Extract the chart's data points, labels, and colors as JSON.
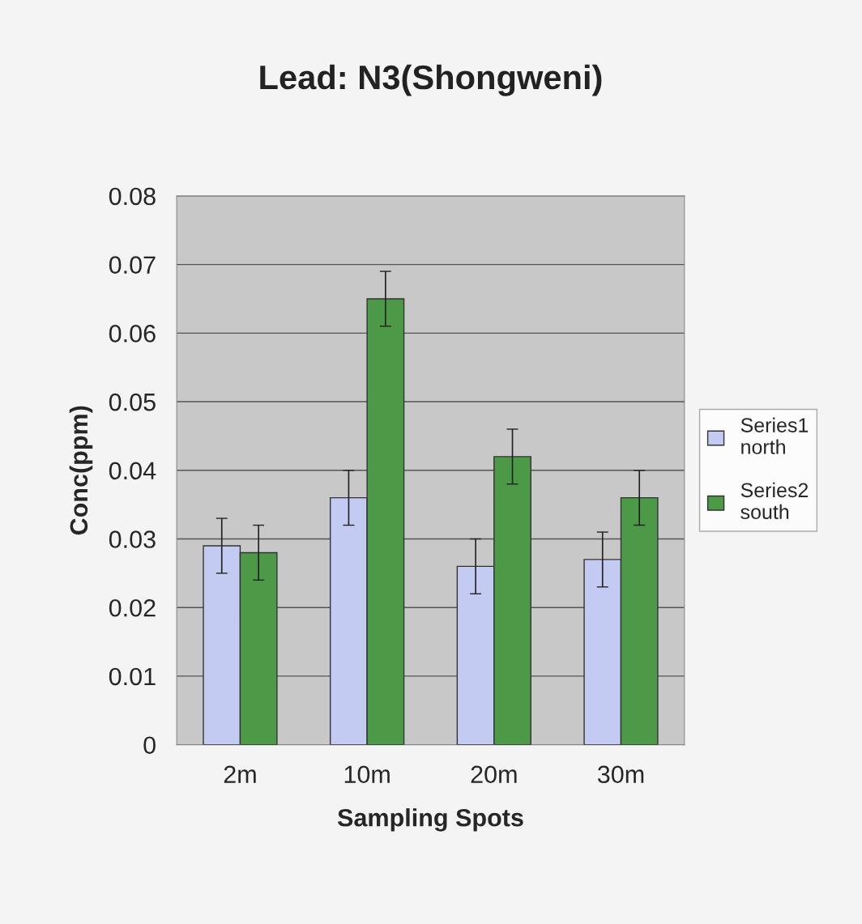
{
  "chart_data": {
    "type": "bar",
    "title": "Lead: N3(Shongweni)",
    "xlabel": "Sampling Spots",
    "ylabel": "Conc(ppm)",
    "categories": [
      "2m",
      "10m",
      "20m",
      "30m"
    ],
    "series": [
      {
        "name": "Series1\nnorth",
        "color": "#c4cbf2",
        "values": [
          0.029,
          0.036,
          0.026,
          0.027
        ],
        "errors": [
          0.004,
          0.004,
          0.004,
          0.004
        ]
      },
      {
        "name": "Series2\nsouth",
        "color": "#4c9a48",
        "values": [
          0.028,
          0.065,
          0.042,
          0.036
        ],
        "errors": [
          0.004,
          0.004,
          0.004,
          0.004
        ]
      }
    ],
    "ylim": [
      0,
      0.08
    ],
    "yticks": [
      0,
      0.01,
      0.02,
      0.03,
      0.04,
      0.05,
      0.06,
      0.07,
      0.08
    ],
    "grid": "y",
    "legend": "right"
  }
}
